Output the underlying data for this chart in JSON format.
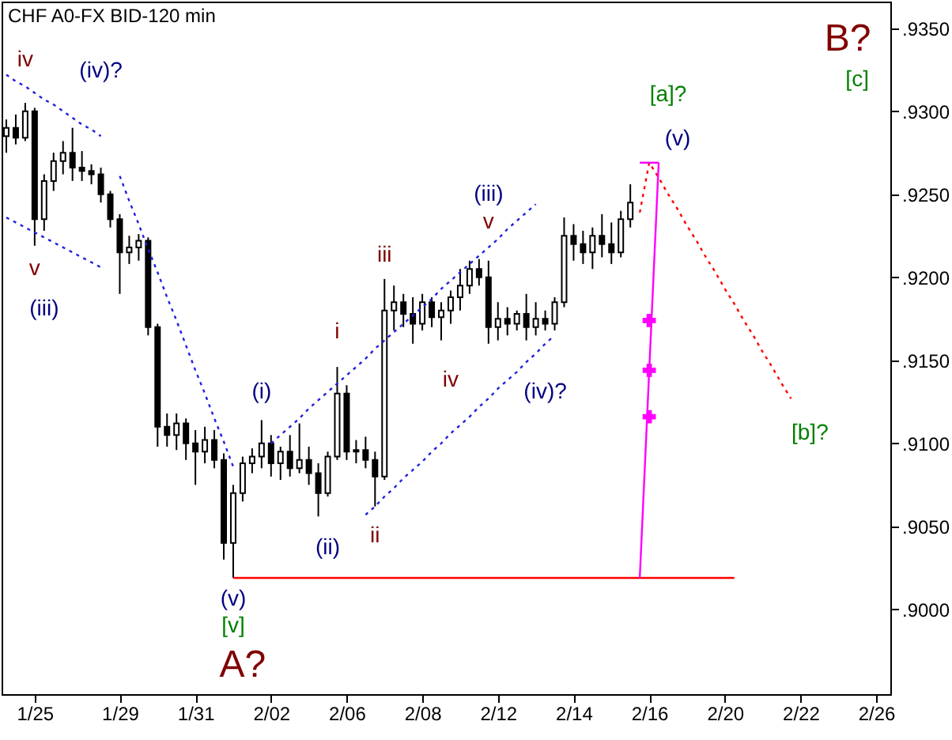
{
  "chart_data": {
    "type": "candlestick",
    "title": "CHF A0-FX BID-120 min",
    "color": "#000000",
    "categories": [
      null,
      null,
      null,
      "1/25",
      null,
      null,
      null,
      null,
      null,
      null,
      null,
      null,
      "1/29",
      null,
      null,
      null,
      null,
      null,
      null,
      null,
      "1/31",
      null,
      null,
      null,
      null,
      null,
      null,
      null,
      "2/02",
      null,
      null,
      null,
      null,
      null,
      null,
      null,
      "2/06",
      null,
      null,
      null,
      null,
      null,
      null,
      null,
      "2/08",
      null,
      null,
      null,
      null,
      null,
      null,
      null,
      "2/12",
      null,
      null,
      null,
      null,
      null,
      null,
      null,
      "2/14",
      null,
      null,
      null,
      null,
      null,
      null,
      null,
      "2/16",
      null,
      null,
      null,
      null,
      null,
      null,
      null,
      "2/20",
      null,
      null,
      null,
      null,
      null,
      null,
      null,
      "2/22",
      null,
      null,
      null,
      null,
      null,
      null,
      null,
      "2/26",
      null
    ],
    "ohlc": [
      [
        0.9285,
        0.9295,
        0.9275,
        0.929
      ],
      [
        0.929,
        0.9298,
        0.928,
        0.9284
      ],
      [
        0.9284,
        0.9305,
        0.9282,
        0.93
      ],
      [
        0.93,
        0.9302,
        0.9219,
        0.9235
      ],
      [
        0.9235,
        0.9262,
        0.9228,
        0.9258
      ],
      [
        0.9258,
        0.9275,
        0.9252,
        0.927
      ],
      [
        0.927,
        0.9282,
        0.9262,
        0.9275
      ],
      [
        0.9275,
        0.929,
        0.9258,
        0.9266
      ],
      [
        0.9266,
        0.9276,
        0.9258,
        0.9264
      ],
      [
        0.9264,
        0.9268,
        0.9256,
        0.9262
      ],
      [
        0.9262,
        0.9266,
        0.9245,
        0.925
      ],
      [
        0.925,
        0.9252,
        0.923,
        0.9235
      ],
      [
        0.9235,
        0.9238,
        0.919,
        0.9215
      ],
      [
        0.9215,
        0.9225,
        0.9208,
        0.9218
      ],
      [
        0.9218,
        0.9226,
        0.921,
        0.9222
      ],
      [
        0.9222,
        0.9224,
        0.9165,
        0.917
      ],
      [
        0.917,
        0.9172,
        0.9098,
        0.911
      ],
      [
        0.911,
        0.9118,
        0.9098,
        0.9105
      ],
      [
        0.9105,
        0.9118,
        0.9096,
        0.9112
      ],
      [
        0.9112,
        0.9115,
        0.909,
        0.91
      ],
      [
        0.91,
        0.9108,
        0.9075,
        0.9095
      ],
      [
        0.9095,
        0.911,
        0.9088,
        0.9102
      ],
      [
        0.9102,
        0.9108,
        0.9085,
        0.909
      ],
      [
        0.909,
        0.9094,
        0.903,
        0.904
      ],
      [
        0.904,
        0.9075,
        0.9019,
        0.907
      ],
      [
        0.907,
        0.9092,
        0.9065,
        0.9088
      ],
      [
        0.9088,
        0.9097,
        0.9082,
        0.9092
      ],
      [
        0.9092,
        0.9114,
        0.9085,
        0.91
      ],
      [
        0.91,
        0.9105,
        0.908,
        0.9088
      ],
      [
        0.9088,
        0.9098,
        0.9078,
        0.9095
      ],
      [
        0.9095,
        0.9105,
        0.908,
        0.9085
      ],
      [
        0.9085,
        0.9112,
        0.9082,
        0.909
      ],
      [
        0.909,
        0.9098,
        0.9075,
        0.9082
      ],
      [
        0.9082,
        0.9088,
        0.9056,
        0.907
      ],
      [
        0.907,
        0.9095,
        0.9068,
        0.9092
      ],
      [
        0.9092,
        0.9146,
        0.909,
        0.913
      ],
      [
        0.913,
        0.9135,
        0.909,
        0.9095
      ],
      [
        0.9095,
        0.9102,
        0.9088,
        0.9096
      ],
      [
        0.9096,
        0.9104,
        0.9085,
        0.909
      ],
      [
        0.909,
        0.9095,
        0.9062,
        0.908
      ],
      [
        0.908,
        0.9199,
        0.9078,
        0.918
      ],
      [
        0.918,
        0.9195,
        0.9168,
        0.9185
      ],
      [
        0.9185,
        0.919,
        0.917,
        0.9178
      ],
      [
        0.9178,
        0.9188,
        0.916,
        0.9172
      ],
      [
        0.9172,
        0.919,
        0.9168,
        0.9185
      ],
      [
        0.9185,
        0.9188,
        0.917,
        0.9176
      ],
      [
        0.9176,
        0.9185,
        0.9162,
        0.918
      ],
      [
        0.918,
        0.9192,
        0.9172,
        0.9188
      ],
      [
        0.9188,
        0.9205,
        0.918,
        0.9195
      ],
      [
        0.9195,
        0.921,
        0.919,
        0.9205
      ],
      [
        0.9205,
        0.9211,
        0.9195,
        0.92
      ],
      [
        0.92,
        0.921,
        0.916,
        0.917
      ],
      [
        0.917,
        0.9185,
        0.9162,
        0.9175
      ],
      [
        0.9175,
        0.9182,
        0.9165,
        0.9172
      ],
      [
        0.9172,
        0.918,
        0.9168,
        0.9178
      ],
      [
        0.9178,
        0.919,
        0.9162,
        0.917
      ],
      [
        0.917,
        0.9185,
        0.9165,
        0.9175
      ],
      [
        0.9175,
        0.918,
        0.9168,
        0.9172
      ],
      [
        0.9172,
        0.9188,
        0.9168,
        0.9185
      ],
      [
        0.9185,
        0.9236,
        0.9182,
        0.9225
      ],
      [
        0.9225,
        0.9232,
        0.921,
        0.922
      ],
      [
        0.922,
        0.9228,
        0.9208,
        0.9215
      ],
      [
        0.9215,
        0.923,
        0.9205,
        0.9225
      ],
      [
        0.9225,
        0.9238,
        0.9212,
        0.922
      ],
      [
        0.922,
        0.9233,
        0.9208,
        0.9215
      ],
      [
        0.9215,
        0.924,
        0.9212,
        0.9235
      ],
      [
        0.9235,
        0.9256,
        0.923,
        0.9245
      ],
      null,
      null,
      null,
      null,
      null,
      null,
      null,
      null,
      null,
      null,
      null,
      null,
      null,
      null,
      null,
      null,
      null,
      null,
      null,
      null,
      null,
      null,
      null,
      null,
      null,
      null,
      null
    ],
    "series": [
      {
        "type": "line",
        "color": "#2020e0",
        "line_style": "dotted",
        "values": [
          0.9322,
          0.9318,
          0.9315,
          0.9311,
          0.9307,
          0.9304,
          0.93,
          0.9296,
          0.9292,
          0.9289,
          0.9285,
          null,
          null,
          null,
          null,
          null,
          null,
          null,
          null,
          null,
          null,
          null,
          null,
          null,
          null,
          null,
          null,
          null,
          null,
          null,
          null,
          null,
          null,
          null,
          null,
          null,
          null,
          null,
          null,
          null,
          null,
          null,
          null,
          null,
          null,
          null,
          null,
          null,
          null,
          null,
          null,
          null,
          null,
          null,
          null,
          null,
          null,
          null,
          null,
          null,
          null,
          null,
          null,
          null,
          null,
          null,
          null,
          null,
          null,
          null,
          null,
          null,
          null,
          null,
          null,
          null,
          null,
          null,
          null,
          null,
          null,
          null,
          null,
          null,
          null,
          null,
          null,
          null,
          null,
          null,
          null,
          null,
          null,
          null
        ]
      },
      {
        "type": "line",
        "color": "#2020e0",
        "line_style": "dotted",
        "values": [
          0.9236,
          0.9233,
          0.923,
          0.9227,
          0.9224,
          0.9221,
          0.9218,
          0.9215,
          0.9212,
          0.9209,
          0.9206,
          null,
          null,
          null,
          null,
          null,
          null,
          null,
          null,
          null,
          null,
          null,
          null,
          null,
          null,
          null,
          null,
          null,
          null,
          null,
          null,
          null,
          null,
          null,
          null,
          null,
          null,
          null,
          null,
          null,
          null,
          null,
          null,
          null,
          null,
          null,
          null,
          null,
          null,
          null,
          null,
          null,
          null,
          null,
          null,
          null,
          null,
          null,
          null,
          null,
          null,
          null,
          null,
          null,
          null,
          null,
          null,
          null,
          null,
          null,
          null,
          null,
          null,
          null,
          null,
          null,
          null,
          null,
          null,
          null,
          null,
          null,
          null,
          null,
          null,
          null,
          null,
          null,
          null,
          null,
          null,
          null,
          null,
          null
        ]
      },
      {
        "type": "line",
        "color": "#2020e0",
        "line_style": "dotted",
        "values": [
          null,
          null,
          null,
          null,
          null,
          null,
          null,
          null,
          null,
          null,
          null,
          null,
          0.9261,
          0.9246,
          0.9232,
          0.9217,
          0.9203,
          0.9188,
          0.9174,
          0.9159,
          0.9144,
          0.913,
          0.9115,
          0.9101,
          0.9086,
          null,
          null,
          null,
          null,
          null,
          null,
          null,
          null,
          null,
          null,
          null,
          null,
          null,
          null,
          null,
          null,
          null,
          null,
          null,
          null,
          null,
          null,
          null,
          null,
          null,
          null,
          null,
          null,
          null,
          null,
          null,
          null,
          null,
          null,
          null,
          null,
          null,
          null,
          null,
          null,
          null,
          null,
          null,
          null,
          null,
          null,
          null,
          null,
          null,
          null,
          null,
          null,
          null,
          null,
          null,
          null,
          null,
          null,
          null,
          null,
          null,
          null,
          null,
          null,
          null,
          null,
          null,
          null,
          null
        ]
      },
      {
        "type": "line",
        "color": "#2020e0",
        "line_style": "dotted",
        "values": [
          null,
          null,
          null,
          null,
          null,
          null,
          null,
          null,
          null,
          null,
          null,
          null,
          null,
          null,
          null,
          null,
          null,
          null,
          null,
          null,
          null,
          null,
          null,
          null,
          null,
          null,
          null,
          null,
          null,
          null,
          null,
          null,
          null,
          null,
          null,
          null,
          null,
          null,
          0.9057,
          0.9062,
          0.9068,
          0.9073,
          0.9079,
          0.9084,
          0.9089,
          0.9095,
          0.91,
          0.9106,
          0.9111,
          0.9116,
          0.9122,
          0.9127,
          0.9133,
          0.9138,
          0.9143,
          0.9149,
          0.9154,
          0.916,
          0.9165,
          null,
          null,
          null,
          null,
          null,
          null,
          null,
          null,
          null,
          null,
          null,
          null,
          null,
          null,
          null,
          null,
          null,
          null,
          null,
          null,
          null,
          null,
          null,
          null,
          null,
          null,
          null,
          null,
          null,
          null,
          null,
          null,
          null,
          null,
          null
        ]
      },
      {
        "type": "line",
        "color": "#2020e0",
        "line_style": "dotted",
        "values": [
          null,
          null,
          null,
          null,
          null,
          null,
          null,
          null,
          null,
          null,
          null,
          null,
          null,
          null,
          null,
          null,
          null,
          null,
          null,
          null,
          null,
          null,
          null,
          null,
          null,
          null,
          null,
          null,
          0.91,
          0.9105,
          0.911,
          0.9115,
          0.9121,
          0.9126,
          0.9131,
          0.9136,
          0.9141,
          0.9146,
          0.9151,
          0.9157,
          0.9162,
          0.9167,
          0.9172,
          0.9177,
          0.9182,
          0.9187,
          0.9193,
          0.9198,
          0.9203,
          0.9208,
          0.9213,
          0.9218,
          0.9223,
          0.9229,
          0.9234,
          0.9239,
          0.9244,
          null,
          null,
          null,
          null,
          null,
          null,
          null,
          null,
          null,
          null,
          null,
          null,
          null,
          null,
          null,
          null,
          null,
          null,
          null,
          null,
          null,
          null,
          null,
          null,
          null,
          null,
          null,
          null,
          null,
          null,
          null,
          null,
          null,
          null,
          null,
          null,
          null
        ]
      },
      {
        "type": "line",
        "color": "#ff0000",
        "line_style": "dotted",
        "values": [
          null,
          null,
          null,
          null,
          null,
          null,
          null,
          null,
          null,
          null,
          null,
          null,
          null,
          null,
          null,
          null,
          null,
          null,
          null,
          null,
          null,
          null,
          null,
          null,
          null,
          null,
          null,
          null,
          null,
          null,
          null,
          null,
          null,
          null,
          null,
          null,
          null,
          null,
          null,
          null,
          null,
          null,
          null,
          null,
          null,
          null,
          null,
          null,
          null,
          null,
          null,
          null,
          null,
          null,
          null,
          null,
          null,
          null,
          null,
          null,
          null,
          null,
          null,
          null,
          null,
          null,
          null,
          0.9239,
          0.9269,
          0.926,
          0.925,
          0.9241,
          0.9231,
          0.9222,
          0.9212,
          0.9203,
          0.9193,
          0.9184,
          0.9174,
          0.9165,
          0.9155,
          0.9146,
          0.9136,
          0.9127,
          null,
          null,
          null,
          null,
          null,
          null,
          null,
          null,
          null,
          null
        ]
      },
      {
        "type": "line",
        "color": "#ff0000",
        "line_style": "solid",
        "values": [
          null,
          null,
          null,
          null,
          null,
          null,
          null,
          null,
          null,
          null,
          null,
          null,
          null,
          null,
          null,
          null,
          null,
          null,
          null,
          null,
          null,
          null,
          null,
          null,
          0.9019,
          0.9019,
          0.9019,
          0.9019,
          0.9019,
          0.9019,
          0.9019,
          0.9019,
          0.9019,
          0.9019,
          0.9019,
          0.9019,
          0.9019,
          0.9019,
          0.9019,
          0.9019,
          0.9019,
          0.9019,
          0.9019,
          0.9019,
          0.9019,
          0.9019,
          0.9019,
          0.9019,
          0.9019,
          0.9019,
          0.9019,
          0.9019,
          0.9019,
          0.9019,
          0.9019,
          0.9019,
          0.9019,
          0.9019,
          0.9019,
          0.9019,
          0.9019,
          0.9019,
          0.9019,
          0.9019,
          0.9019,
          0.9019,
          0.9019,
          0.9019,
          0.9019,
          0.9019,
          0.9019,
          0.9019,
          0.9019,
          0.9019,
          0.9019,
          0.9019,
          0.9019,
          0.9019,
          null,
          null,
          null,
          null,
          null,
          null,
          null,
          null,
          null,
          null,
          null,
          null,
          null,
          null,
          null,
          null
        ]
      },
      {
        "type": "line",
        "color": "#f000f0",
        "line_style": "solid",
        "values": [
          null,
          null,
          null,
          null,
          null,
          null,
          null,
          null,
          null,
          null,
          null,
          null,
          null,
          null,
          null,
          null,
          null,
          null,
          null,
          null,
          null,
          null,
          null,
          null,
          null,
          null,
          null,
          null,
          null,
          null,
          null,
          null,
          null,
          null,
          null,
          null,
          null,
          null,
          null,
          null,
          null,
          null,
          null,
          null,
          null,
          null,
          null,
          null,
          null,
          null,
          null,
          null,
          null,
          null,
          null,
          null,
          null,
          null,
          null,
          null,
          null,
          null,
          null,
          null,
          null,
          null,
          null,
          0.9269,
          0.9269,
          0.9269,
          null,
          null,
          null,
          null,
          null,
          null,
          null,
          null,
          null,
          null,
          null,
          null,
          null,
          null,
          null,
          null,
          null,
          null,
          null,
          null,
          null,
          null,
          null,
          null
        ]
      },
      {
        "type": "line",
        "color": "#ff00ff",
        "line_style": "solid",
        "values": [
          null,
          null,
          null,
          null,
          null,
          null,
          null,
          null,
          null,
          null,
          null,
          null,
          null,
          null,
          null,
          null,
          null,
          null,
          null,
          null,
          null,
          null,
          null,
          null,
          null,
          null,
          null,
          null,
          null,
          null,
          null,
          null,
          null,
          null,
          null,
          null,
          null,
          null,
          null,
          null,
          null,
          null,
          null,
          null,
          null,
          null,
          null,
          null,
          null,
          null,
          null,
          null,
          null,
          null,
          null,
          null,
          null,
          null,
          null,
          null,
          null,
          null,
          null,
          null,
          null,
          null,
          null,
          0.9019,
          0.9144,
          0.9269,
          null,
          null,
          null,
          null,
          null,
          null,
          null,
          null,
          null,
          null,
          null,
          null,
          null,
          null,
          null,
          null,
          null,
          null,
          null,
          null,
          null,
          null,
          null,
          null
        ]
      },
      {
        "type": "scatter",
        "color": "#ff00ff",
        "marker": "cross",
        "values": [
          null,
          null,
          null,
          null,
          null,
          null,
          null,
          null,
          null,
          null,
          null,
          null,
          null,
          null,
          null,
          null,
          null,
          null,
          null,
          null,
          null,
          null,
          null,
          null,
          null,
          null,
          null,
          null,
          null,
          null,
          null,
          null,
          null,
          null,
          null,
          null,
          null,
          null,
          null,
          null,
          null,
          null,
          null,
          null,
          null,
          null,
          null,
          null,
          null,
          null,
          null,
          null,
          null,
          null,
          null,
          null,
          null,
          null,
          null,
          null,
          null,
          null,
          null,
          null,
          null,
          null,
          null,
          null,
          0.9174,
          null,
          null,
          null,
          null,
          null,
          null,
          null,
          null,
          null,
          null,
          null,
          null,
          null,
          null,
          null,
          null,
          null,
          null,
          null,
          null,
          null,
          null,
          null,
          null,
          null
        ]
      },
      {
        "type": "scatter",
        "color": "#ff00ff",
        "marker": "cross",
        "values": [
          null,
          null,
          null,
          null,
          null,
          null,
          null,
          null,
          null,
          null,
          null,
          null,
          null,
          null,
          null,
          null,
          null,
          null,
          null,
          null,
          null,
          null,
          null,
          null,
          null,
          null,
          null,
          null,
          null,
          null,
          null,
          null,
          null,
          null,
          null,
          null,
          null,
          null,
          null,
          null,
          null,
          null,
          null,
          null,
          null,
          null,
          null,
          null,
          null,
          null,
          null,
          null,
          null,
          null,
          null,
          null,
          null,
          null,
          null,
          null,
          null,
          null,
          null,
          null,
          null,
          null,
          null,
          null,
          0.9144,
          null,
          null,
          null,
          null,
          null,
          null,
          null,
          null,
          null,
          null,
          null,
          null,
          null,
          null,
          null,
          null,
          null,
          null,
          null,
          null,
          null,
          null,
          null,
          null,
          null
        ]
      },
      {
        "type": "scatter",
        "color": "#ff00ff",
        "marker": "cross",
        "values": [
          null,
          null,
          null,
          null,
          null,
          null,
          null,
          null,
          null,
          null,
          null,
          null,
          null,
          null,
          null,
          null,
          null,
          null,
          null,
          null,
          null,
          null,
          null,
          null,
          null,
          null,
          null,
          null,
          null,
          null,
          null,
          null,
          null,
          null,
          null,
          null,
          null,
          null,
          null,
          null,
          null,
          null,
          null,
          null,
          null,
          null,
          null,
          null,
          null,
          null,
          null,
          null,
          null,
          null,
          null,
          null,
          null,
          null,
          null,
          null,
          null,
          null,
          null,
          null,
          null,
          null,
          null,
          null,
          0.9116,
          null,
          null,
          null,
          null,
          null,
          null,
          null,
          null,
          null,
          null,
          null,
          null,
          null,
          null,
          null,
          null,
          null,
          null,
          null,
          null,
          null,
          null,
          null,
          null,
          null
        ]
      }
    ],
    "annotations": [
      "iv",
      "(iv)?",
      "v",
      "(iii)",
      "(i)",
      "(ii)",
      "(v)",
      "[v]",
      "A?",
      "i",
      "ii",
      "iii",
      "iv",
      "v",
      "(iii)",
      "(iv)?",
      "[a]?",
      "(v)",
      "B?",
      "[c]",
      "[b]?"
    ],
    "ylim": [
      0.8949,
      0.9366
    ],
    "yticks": [
      {
        "value": 0.9,
        "label": ".9000"
      },
      {
        "value": 0.905,
        "label": ".9050"
      },
      {
        "value": 0.91,
        "label": ".9100"
      },
      {
        "value": 0.915,
        "label": ".9150"
      },
      {
        "value": 0.92,
        "label": ".9200"
      },
      {
        "value": 0.925,
        "label": ".9250"
      },
      {
        "value": 0.93,
        "label": ".9300"
      },
      {
        "value": 0.935,
        "label": ".9350"
      }
    ],
    "grid": false
  }
}
